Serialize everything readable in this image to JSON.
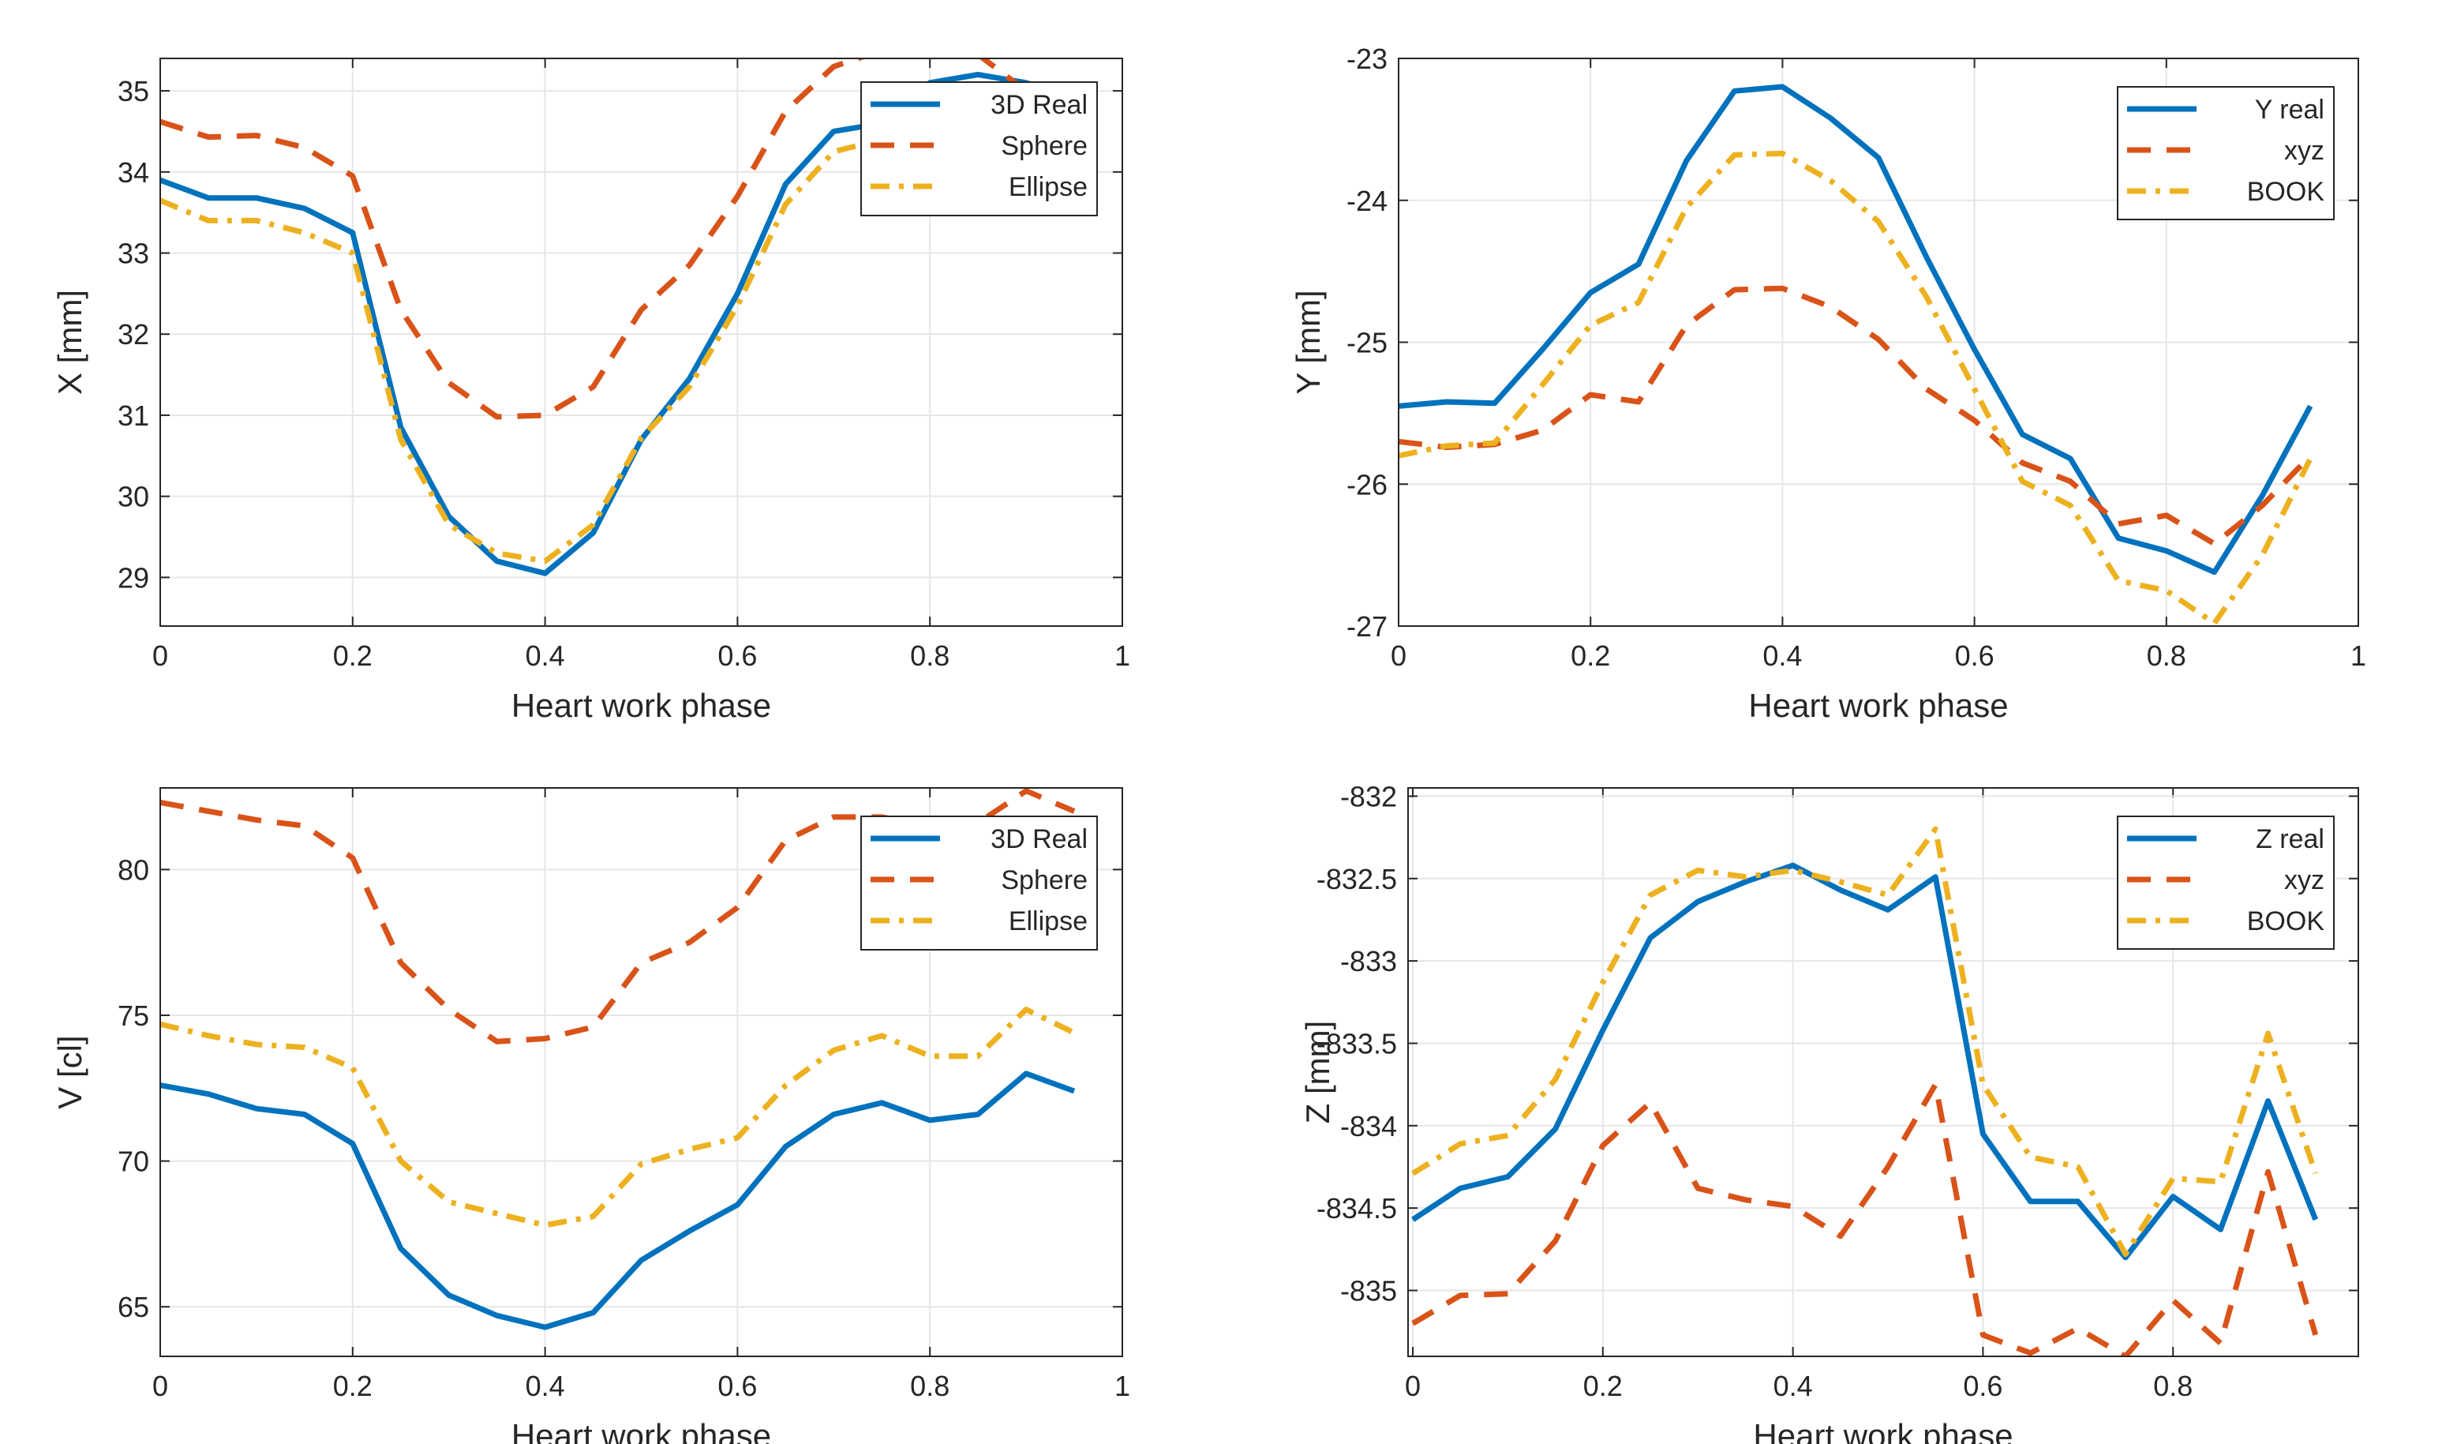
{
  "chart_data": [
    {
      "type": "line",
      "xlabel": "Heart work phase",
      "ylabel": "X [mm]",
      "xlim": [
        0,
        1
      ],
      "ylim": [
        28.4,
        35.4
      ],
      "xticks": [
        "0",
        "0.2",
        "0.4",
        "0.6",
        "0.8",
        "1"
      ],
      "yticks": [
        "29",
        "30",
        "31",
        "32",
        "33",
        "34",
        "35"
      ],
      "grid": true,
      "legend_position": "top-right",
      "x": [
        0,
        0.05,
        0.1,
        0.15,
        0.2,
        0.25,
        0.3,
        0.35,
        0.4,
        0.45,
        0.5,
        0.55,
        0.6,
        0.65,
        0.7,
        0.75,
        0.8,
        0.85,
        0.9,
        0.95
      ],
      "series": [
        {
          "name": "3D Real",
          "color": "#0072BD",
          "style": "solid",
          "values": [
            33.9,
            33.68,
            33.68,
            33.55,
            33.25,
            30.85,
            29.75,
            29.2,
            29.05,
            29.55,
            30.7,
            31.45,
            32.5,
            33.85,
            34.5,
            34.6,
            35.1,
            35.2,
            35.1,
            34.9
          ]
        },
        {
          "name": "Sphere",
          "color": "#D95319",
          "style": "dashed",
          "values": [
            34.62,
            34.43,
            34.45,
            34.3,
            33.95,
            32.3,
            31.4,
            30.98,
            31.0,
            31.35,
            32.3,
            32.85,
            33.7,
            34.75,
            35.3,
            35.5,
            35.5,
            35.45,
            35.0,
            34.8
          ]
        },
        {
          "name": "Ellipse",
          "color": "#EDB120",
          "style": "dashdot",
          "values": [
            33.65,
            33.4,
            33.4,
            33.25,
            33.0,
            30.7,
            29.65,
            29.3,
            29.2,
            29.65,
            30.72,
            31.35,
            32.35,
            33.6,
            34.25,
            34.4,
            34.95,
            35.05,
            34.95,
            34.75
          ]
        }
      ]
    },
    {
      "type": "line",
      "xlabel": "Heart work phase",
      "ylabel": "Y [mm]",
      "xlim": [
        0,
        1
      ],
      "ylim": [
        -27,
        -23
      ],
      "xticks": [
        "0",
        "0.2",
        "0.4",
        "0.6",
        "0.8",
        "1"
      ],
      "yticks": [
        "-27",
        "-26",
        "-25",
        "-24",
        "-23"
      ],
      "grid": true,
      "legend_position": "top-right",
      "x": [
        0,
        0.05,
        0.1,
        0.15,
        0.2,
        0.25,
        0.3,
        0.35,
        0.4,
        0.45,
        0.5,
        0.55,
        0.6,
        0.65,
        0.7,
        0.75,
        0.8,
        0.85,
        0.9,
        0.95
      ],
      "series": [
        {
          "name": "Y real",
          "color": "#0072BD",
          "style": "solid",
          "values": [
            -25.45,
            -25.42,
            -25.43,
            -25.05,
            -24.65,
            -24.45,
            -23.72,
            -23.23,
            -23.2,
            -23.42,
            -23.7,
            -24.4,
            -25.05,
            -25.65,
            -25.82,
            -26.38,
            -26.47,
            -26.62,
            -26.08,
            -25.45
          ]
        },
        {
          "name": "xyz",
          "color": "#D95319",
          "style": "dashed",
          "values": [
            -25.7,
            -25.74,
            -25.72,
            -25.62,
            -25.37,
            -25.42,
            -24.88,
            -24.63,
            -24.62,
            -24.75,
            -24.98,
            -25.33,
            -25.55,
            -25.85,
            -25.98,
            -26.28,
            -26.22,
            -26.42,
            -26.15,
            -25.8
          ]
        },
        {
          "name": "BOOK",
          "color": "#EDB120",
          "style": "dashdot",
          "values": [
            -25.8,
            -25.73,
            -25.71,
            -25.3,
            -24.88,
            -24.72,
            -24.05,
            -23.68,
            -23.67,
            -23.86,
            -24.15,
            -24.68,
            -25.33,
            -25.98,
            -26.15,
            -26.68,
            -26.75,
            -26.98,
            -26.5,
            -25.82
          ]
        }
      ]
    },
    {
      "type": "line",
      "xlabel": "Heart work phase",
      "ylabel": "V [cl]",
      "xlim": [
        0,
        1
      ],
      "ylim": [
        63.3,
        82.8
      ],
      "xticks": [
        "0",
        "0.2",
        "0.4",
        "0.6",
        "0.8",
        "1"
      ],
      "yticks": [
        "65",
        "70",
        "75",
        "80"
      ],
      "grid": true,
      "legend_position": "top-right",
      "x": [
        0,
        0.05,
        0.1,
        0.15,
        0.2,
        0.25,
        0.3,
        0.35,
        0.4,
        0.45,
        0.5,
        0.55,
        0.6,
        0.65,
        0.7,
        0.75,
        0.8,
        0.85,
        0.9,
        0.95
      ],
      "series": [
        {
          "name": "3D Real",
          "color": "#0072BD",
          "style": "solid",
          "values": [
            72.6,
            72.3,
            71.8,
            71.6,
            70.6,
            67.0,
            65.4,
            64.7,
            64.3,
            64.8,
            66.6,
            67.6,
            68.5,
            70.5,
            71.6,
            72.0,
            71.4,
            71.6,
            73.0,
            72.4
          ]
        },
        {
          "name": "Sphere",
          "color": "#D95319",
          "style": "dashed",
          "values": [
            82.3,
            82.0,
            81.7,
            81.5,
            80.4,
            76.8,
            75.2,
            74.1,
            74.2,
            74.6,
            76.8,
            77.5,
            78.7,
            81.0,
            81.8,
            81.8,
            81.5,
            81.6,
            82.7,
            82.0
          ]
        },
        {
          "name": "Ellipse",
          "color": "#EDB120",
          "style": "dashdot",
          "values": [
            74.7,
            74.3,
            74.0,
            73.9,
            73.2,
            70.0,
            68.6,
            68.2,
            67.8,
            68.1,
            69.9,
            70.4,
            70.8,
            72.6,
            73.8,
            74.3,
            73.6,
            73.6,
            75.2,
            74.4
          ]
        }
      ]
    },
    {
      "type": "line",
      "xlabel": "Heart work phase",
      "ylabel": "Z [mm]",
      "xlim": [
        -0.005,
        0.995
      ],
      "ylim": [
        -835.4,
        -831.95
      ],
      "xticks": [
        "0",
        "0.2",
        "0.4",
        "0.6",
        "0.8"
      ],
      "yticks": [
        "-835",
        "-834.5",
        "-834",
        "-833.5",
        "-833",
        "-832.5",
        "-832"
      ],
      "grid": true,
      "legend_position": "top-right",
      "x": [
        0,
        0.05,
        0.1,
        0.15,
        0.2,
        0.25,
        0.3,
        0.35,
        0.4,
        0.45,
        0.5,
        0.55,
        0.6,
        0.65,
        0.7,
        0.75,
        0.8,
        0.85,
        0.9,
        0.95
      ],
      "series": [
        {
          "name": "Z real",
          "color": "#0072BD",
          "style": "solid",
          "values": [
            -834.57,
            -834.38,
            -834.31,
            -834.02,
            -833.42,
            -832.86,
            -832.64,
            -832.52,
            -832.42,
            -832.57,
            -832.69,
            -832.49,
            -834.05,
            -834.46,
            -834.46,
            -834.8,
            -834.43,
            -834.63,
            -833.85,
            -834.57
          ]
        },
        {
          "name": "xyz",
          "color": "#D95319",
          "style": "dashed",
          "values": [
            -835.2,
            -835.03,
            -835.02,
            -834.7,
            -834.12,
            -833.86,
            -834.38,
            -834.45,
            -834.49,
            -834.67,
            -834.25,
            -833.75,
            -835.27,
            -835.38,
            -835.23,
            -835.4,
            -835.06,
            -835.32,
            -834.28,
            -835.27
          ]
        },
        {
          "name": "BOOK",
          "color": "#EDB120",
          "style": "dashdot",
          "values": [
            -834.29,
            -834.11,
            -834.06,
            -833.72,
            -833.13,
            -832.6,
            -832.45,
            -832.49,
            -832.45,
            -832.52,
            -832.6,
            -832.2,
            -833.75,
            -834.19,
            -834.25,
            -834.78,
            -834.32,
            -834.34,
            -833.44,
            -834.29
          ]
        }
      ]
    }
  ]
}
